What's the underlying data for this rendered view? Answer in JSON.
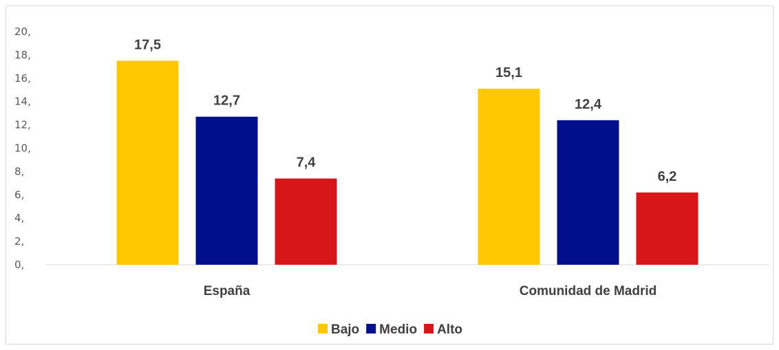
{
  "chart_data": {
    "type": "bar",
    "categories": [
      "España",
      "Comunidad de Madrid"
    ],
    "series": [
      {
        "name": "Bajo",
        "color": "#FFC800",
        "values": [
          17.5,
          15.1
        ],
        "labels": [
          "17,5",
          "15,1"
        ]
      },
      {
        "name": "Medio",
        "color": "#000F8C",
        "values": [
          12.7,
          12.4
        ],
        "labels": [
          "12,7",
          "12,4"
        ]
      },
      {
        "name": "Alto",
        "color": "#D7161A",
        "values": [
          7.4,
          6.2
        ],
        "labels": [
          "7,4",
          "6,2"
        ]
      }
    ],
    "ylim": [
      0,
      20
    ],
    "yticks": [
      0,
      2,
      4,
      6,
      8,
      10,
      12,
      14,
      16,
      18,
      20
    ],
    "ytick_labels": [
      "0,",
      "2,",
      "4,",
      "6,",
      "8,",
      "10,",
      "12,",
      "14,",
      "16,",
      "18,",
      "20,"
    ],
    "grid": false,
    "legend": "bottom",
    "title": "",
    "xlabel": "",
    "ylabel": ""
  }
}
